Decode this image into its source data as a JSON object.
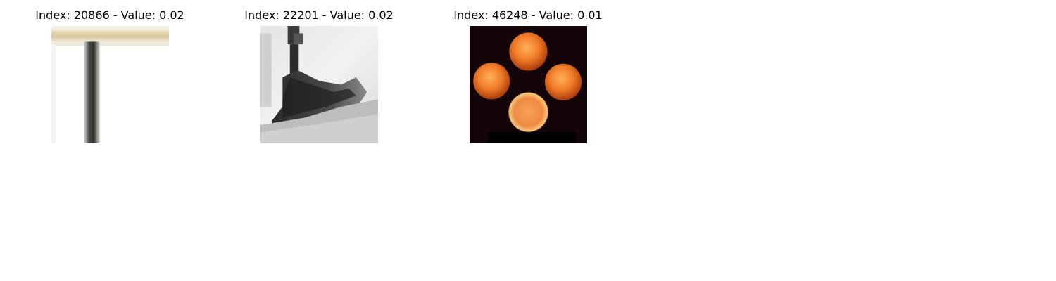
{
  "panels": [
    {
      "title": "Index: 20866 - Value: 0.02",
      "subject": "table-photo"
    },
    {
      "title": "Index: 22201 - Value: 0.02",
      "subject": "grayscale-ship-photo"
    },
    {
      "title": "Index: 46248 - Value: 0.01",
      "subject": "oranges-photo"
    }
  ]
}
